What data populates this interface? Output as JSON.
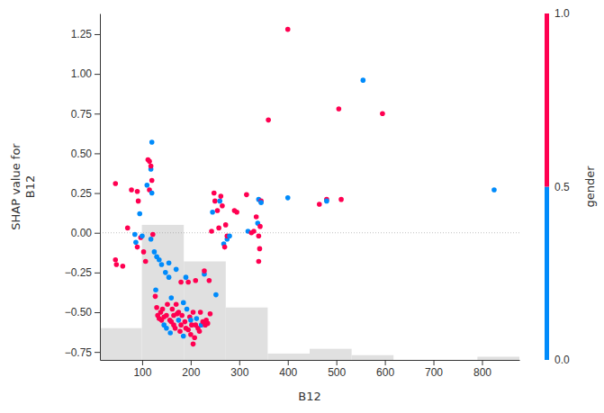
{
  "chart_data": {
    "type": "scatter",
    "x_label": "B12",
    "y_label": "SHAP value for\nB12",
    "xlim": [
      13,
      877
    ],
    "ylim": [
      -0.8,
      1.38
    ],
    "xticks": [
      100,
      200,
      300,
      400,
      500,
      600,
      700,
      800
    ],
    "yticks": [
      {
        "value": -0.75,
        "label": "−0.75"
      },
      {
        "value": -0.5,
        "label": "−0.50"
      },
      {
        "value": -0.25,
        "label": "−0.25"
      },
      {
        "value": 0,
        "label": "0.00"
      },
      {
        "value": 0.25,
        "label": "0.25"
      },
      {
        "value": 0.5,
        "label": "0.50"
      },
      {
        "value": 0.75,
        "label": "0.75"
      },
      {
        "value": 1,
        "label": "1.00"
      },
      {
        "value": 1.25,
        "label": "1.25"
      }
    ],
    "hline": 0,
    "histogram": {
      "bins": [
        13,
        99.4,
        185.8,
        272.2,
        358.6,
        445,
        531.4,
        617.8,
        704.2,
        790.6,
        877
      ],
      "values": [
        -0.6,
        0.05,
        -0.18,
        -0.47,
        -0.76,
        -0.73,
        -0.77,
        null,
        null,
        -0.78
      ],
      "color": "#e0e0e0"
    },
    "colorbar": {
      "label": "gender",
      "range": [
        0,
        1
      ],
      "ticks": [
        {
          "value": 0,
          "label": "0.0"
        },
        {
          "value": 0.5,
          "label": "0.5"
        },
        {
          "value": 1,
          "label": "1.0"
        }
      ],
      "colors": [
        "#008bfb",
        "#ff0051"
      ]
    },
    "x": [
      45,
      45,
      47,
      60,
      70,
      78,
      85,
      87,
      90,
      90,
      92,
      95,
      97,
      100,
      103,
      107,
      110,
      112,
      115,
      115,
      118,
      118,
      120,
      120,
      120,
      118,
      122,
      125,
      127,
      128,
      130,
      130,
      132,
      135,
      135,
      138,
      140,
      140,
      142,
      145,
      145,
      148,
      150,
      150,
      152,
      155,
      155,
      157,
      158,
      160,
      160,
      162,
      165,
      165,
      168,
      170,
      170,
      172,
      175,
      175,
      178,
      180,
      180,
      182,
      185,
      185,
      188,
      190,
      190,
      192,
      195,
      195,
      198,
      200,
      200,
      202,
      205,
      205,
      208,
      210,
      210,
      212,
      215,
      218,
      220,
      222,
      225,
      228,
      228,
      230,
      232,
      235,
      238,
      240,
      243,
      245,
      248,
      250,
      252,
      255,
      258,
      260,
      262,
      265,
      268,
      270,
      272,
      275,
      275,
      280,
      290,
      295,
      315,
      318,
      325,
      330,
      335,
      338,
      340,
      340,
      342,
      340,
      343,
      345,
      345,
      360,
      400,
      400,
      465,
      480,
      480,
      505,
      510,
      555,
      595,
      825
    ],
    "values": [
      0.31,
      -0.17,
      -0.2,
      -0.21,
      0.03,
      0.27,
      -0.01,
      -0.06,
      -0.09,
      0.26,
      0.2,
      0.12,
      -0.03,
      -0.02,
      -0.12,
      -0.18,
      0.3,
      0.46,
      0.45,
      0.27,
      0.4,
      0.42,
      0.57,
      0.33,
      0.25,
      -0.04,
      -0.01,
      -0.12,
      -0.4,
      -0.36,
      -0.15,
      -0.47,
      -0.52,
      -0.54,
      -0.17,
      -0.5,
      -0.2,
      -0.55,
      -0.48,
      -0.53,
      -0.58,
      -0.25,
      -0.52,
      -0.6,
      -0.45,
      -0.19,
      -0.28,
      -0.55,
      -0.63,
      -0.41,
      -0.56,
      -0.48,
      -0.52,
      -0.58,
      -0.6,
      -0.45,
      -0.23,
      -0.51,
      -0.5,
      -0.55,
      -0.62,
      -0.31,
      -0.58,
      -0.52,
      -0.65,
      -0.44,
      -0.56,
      -0.6,
      -0.28,
      -0.48,
      -0.61,
      -0.31,
      -0.53,
      -0.64,
      -0.55,
      -0.58,
      -0.7,
      -0.5,
      -0.66,
      -0.58,
      -0.3,
      -0.54,
      -0.6,
      -0.62,
      -0.5,
      -0.58,
      -0.56,
      -0.26,
      -0.24,
      -0.58,
      -0.55,
      -0.57,
      -0.3,
      -0.51,
      0.01,
      0.13,
      0.25,
      0.2,
      -0.39,
      0.14,
      0.03,
      0.2,
      0.23,
      0.17,
      -0.07,
      -0.09,
      0.05,
      -0.04,
      -0.02,
      -0.02,
      0.14,
      0.13,
      0.24,
      0.01,
      0,
      0.01,
      0.1,
      0.06,
      0.21,
      -0.02,
      -0.1,
      -0.18,
      0.04,
      0.2,
      0.19,
      0.71,
      1.28,
      0.22,
      0.18,
      0.21,
      0.2,
      0.78,
      0.21,
      0.96,
      0.75,
      0.27
    ],
    "color_values": [
      1,
      1,
      1,
      1,
      1,
      1,
      0,
      0,
      1,
      1,
      1,
      0,
      1,
      0,
      1,
      1,
      0,
      1,
      1,
      1,
      0,
      1,
      0,
      1,
      0,
      0,
      1,
      0,
      1,
      0,
      0,
      1,
      1,
      1,
      0,
      1,
      0,
      1,
      1,
      1,
      0,
      0,
      1,
      0,
      1,
      0,
      0,
      1,
      0,
      0,
      1,
      1,
      1,
      1,
      1,
      1,
      0,
      1,
      1,
      0,
      1,
      1,
      1,
      1,
      0,
      0,
      1,
      1,
      0,
      0,
      1,
      1,
      1,
      1,
      0,
      1,
      1,
      1,
      1,
      1,
      1,
      0,
      1,
      1,
      1,
      0,
      1,
      0,
      1,
      1,
      1,
      1,
      1,
      1,
      1,
      0,
      1,
      1,
      0,
      1,
      1,
      0,
      1,
      1,
      0,
      1,
      1,
      0,
      1,
      0,
      1,
      1,
      1,
      0,
      1,
      1,
      1,
      0,
      0,
      1,
      1,
      1,
      1,
      1,
      0,
      1,
      1,
      0,
      1,
      1,
      0,
      1,
      1,
      0,
      1,
      0
    ]
  }
}
